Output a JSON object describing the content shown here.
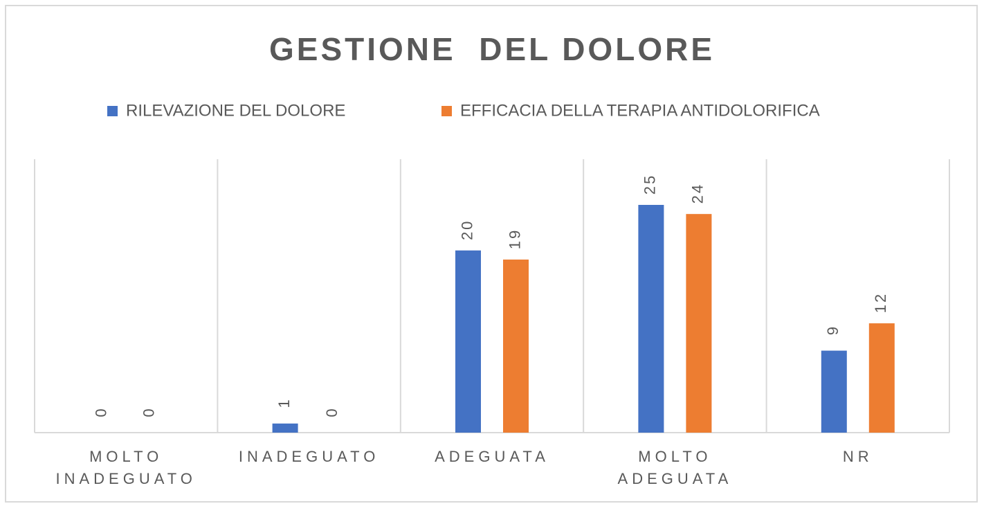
{
  "chart_data": {
    "type": "bar",
    "title": "GESTIONE  DEL DOLORE",
    "categories": [
      "MOLTO INADEGUATO",
      "INADEGUATO",
      "ADEGUATA",
      "MOLTO ADEGUATA",
      "NR"
    ],
    "series": [
      {
        "name": "RILEVAZIONE DEL DOLORE",
        "color": "#4472c4",
        "values": [
          0,
          1,
          20,
          25,
          9
        ]
      },
      {
        "name": "EFFICACIA DELLA TERAPIA ANTIDOLORIFICA",
        "color": "#ed7d31",
        "values": [
          0,
          0,
          19,
          24,
          12
        ]
      }
    ]
  }
}
